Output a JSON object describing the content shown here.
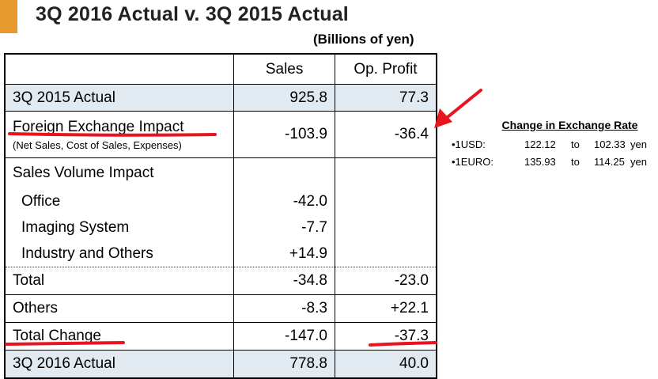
{
  "title": "3Q 2016 Actual v. 3Q 2015 Actual",
  "units": "(Billions of yen)",
  "table": {
    "headers": [
      "Sales",
      "Op. Profit"
    ],
    "rows": [
      {
        "label": "3Q 2015 Actual",
        "sales": "925.8",
        "op": "77.3"
      },
      {
        "label": "Foreign Exchange Impact",
        "sub": "(Net Sales, Cost of Sales, Expenses)",
        "sales": "-103.9",
        "op": "-36.4"
      },
      {
        "label": "Sales Volume Impact",
        "sales": "",
        "op": ""
      },
      {
        "label": "Office",
        "sales": "-42.0",
        "op": ""
      },
      {
        "label": "Imaging System",
        "sales": "-7.7",
        "op": ""
      },
      {
        "label": "Industry and Others",
        "sales": "+14.9",
        "op": ""
      },
      {
        "label": "Total",
        "sales": "-34.8",
        "op": "-23.0"
      },
      {
        "label": "Others",
        "sales": "-8.3",
        "op": "+22.1"
      },
      {
        "label": "Total Change",
        "sales": "-147.0",
        "op": "-37.3"
      },
      {
        "label": "3Q 2016 Actual",
        "sales": "778.8",
        "op": "40.0"
      }
    ]
  },
  "exchange": {
    "title": "Change in Exchange Rate",
    "rates": [
      {
        "label": "•1USD:",
        "from": "122.12",
        "to_word": "to",
        "to": "102.33",
        "unit": "yen"
      },
      {
        "label": "•1EURO:",
        "from": "135.93",
        "to_word": "to",
        "to": "114.25",
        "unit": "yen"
      }
    ]
  },
  "colors": {
    "accent": "#e69a2e",
    "shade": "#e1eaf0",
    "annotation": "#e8141e"
  }
}
